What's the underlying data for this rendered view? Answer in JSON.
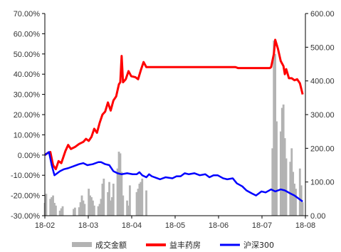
{
  "chart_data": {
    "type": "line",
    "title": "",
    "left_axis": {
      "ticks": [
        "70.00%",
        "60.00%",
        "50.00%",
        "40.00%",
        "30.00%",
        "20.00%",
        "10.00%",
        "0.00%",
        "-10.00%",
        "-20.00%",
        "-30.00%"
      ],
      "ylim": [
        -30,
        70
      ],
      "unit": "%"
    },
    "right_axis": {
      "ticks": [
        "600.00",
        "500.00",
        "400.00",
        "300.00",
        "200.00",
        "100.00",
        "0.00"
      ],
      "ylim": [
        0,
        600
      ]
    },
    "x_axis": {
      "ticks": [
        "18-02",
        "18-03",
        "18-04",
        "18-05",
        "18-06",
        "18-07",
        "18-08"
      ],
      "start": "2018-02-01",
      "end": "2018-08-10"
    },
    "grid": false,
    "legend_position": "bottom",
    "legend": [
      {
        "name": "成交金额",
        "color": "#b3b3b3",
        "kind": "bar"
      },
      {
        "name": "益丰药房",
        "color": "#ff0000",
        "kind": "line"
      },
      {
        "name": "沪深300",
        "color": "#0000ff",
        "kind": "line"
      }
    ],
    "series": [
      {
        "name": "益丰药房",
        "axis": "left",
        "color": "#ff0000",
        "points": [
          [
            "2018-02-01",
            0.0
          ],
          [
            "2018-02-03",
            1.0
          ],
          [
            "2018-02-05",
            1.5
          ],
          [
            "2018-02-07",
            -5.0
          ],
          [
            "2018-02-09",
            -7.0
          ],
          [
            "2018-02-11",
            -3.0
          ],
          [
            "2018-02-13",
            -4.0
          ],
          [
            "2018-02-16",
            2.0
          ],
          [
            "2018-02-18",
            5.0
          ],
          [
            "2018-02-20",
            3.0
          ],
          [
            "2018-02-23",
            4.0
          ],
          [
            "2018-02-26",
            5.5
          ],
          [
            "2018-03-01",
            6.5
          ],
          [
            "2018-03-03",
            8.0
          ],
          [
            "2018-03-05",
            7.0
          ],
          [
            "2018-03-07",
            9.0
          ],
          [
            "2018-03-09",
            13.0
          ],
          [
            "2018-03-11",
            11.0
          ],
          [
            "2018-03-13",
            16.0
          ],
          [
            "2018-03-15",
            20.0
          ],
          [
            "2018-03-17",
            21.5
          ],
          [
            "2018-03-19",
            26.0
          ],
          [
            "2018-03-21",
            22.0
          ],
          [
            "2018-03-23",
            27.0
          ],
          [
            "2018-03-25",
            29.0
          ],
          [
            "2018-03-27",
            35.0
          ],
          [
            "2018-03-28",
            36.0
          ],
          [
            "2018-03-29",
            49.0
          ],
          [
            "2018-03-30",
            36.0
          ],
          [
            "2018-04-01",
            37.5
          ],
          [
            "2018-04-03",
            41.5
          ],
          [
            "2018-04-05",
            39.0
          ],
          [
            "2018-04-08",
            38.5
          ],
          [
            "2018-04-10",
            37.5
          ],
          [
            "2018-04-12",
            42.0
          ],
          [
            "2018-04-14",
            46.0
          ],
          [
            "2018-04-16",
            43.5
          ],
          [
            "2018-04-25",
            43.5
          ],
          [
            "2018-05-15",
            43.5
          ],
          [
            "2018-06-05",
            43.5
          ],
          [
            "2018-06-20",
            43.5
          ],
          [
            "2018-06-22",
            43.0
          ],
          [
            "2018-07-05",
            43.0
          ],
          [
            "2018-07-15",
            43.0
          ],
          [
            "2018-07-16",
            43.5
          ],
          [
            "2018-07-18",
            50.0
          ],
          [
            "2018-07-19",
            57.0
          ],
          [
            "2018-07-21",
            52.5
          ],
          [
            "2018-07-23",
            46.5
          ],
          [
            "2018-07-25",
            44.0
          ],
          [
            "2018-07-26",
            40.0
          ],
          [
            "2018-07-27",
            42.5
          ],
          [
            "2018-07-29",
            38.0
          ],
          [
            "2018-07-31",
            38.0
          ],
          [
            "2018-08-02",
            37.0
          ],
          [
            "2018-08-04",
            37.5
          ],
          [
            "2018-08-06",
            35.5
          ],
          [
            "2018-08-08",
            30.0
          ]
        ]
      },
      {
        "name": "沪深300",
        "axis": "left",
        "color": "#0000ff",
        "points": [
          [
            "2018-02-01",
            0.0
          ],
          [
            "2018-02-03",
            1.0
          ],
          [
            "2018-02-04",
            1.5
          ],
          [
            "2018-02-06",
            -5.0
          ],
          [
            "2018-02-08",
            -10.0
          ],
          [
            "2018-02-10",
            -9.0
          ],
          [
            "2018-02-12",
            -8.0
          ],
          [
            "2018-02-15",
            -7.0
          ],
          [
            "2018-02-18",
            -6.5
          ],
          [
            "2018-02-22",
            -5.5
          ],
          [
            "2018-02-26",
            -4.5
          ],
          [
            "2018-03-01",
            -4.0
          ],
          [
            "2018-03-04",
            -5.0
          ],
          [
            "2018-03-08",
            -4.5
          ],
          [
            "2018-03-12",
            -3.5
          ],
          [
            "2018-03-14",
            -3.5
          ],
          [
            "2018-03-17",
            -4.5
          ],
          [
            "2018-03-20",
            -5.0
          ],
          [
            "2018-03-23",
            -8.0
          ],
          [
            "2018-03-26",
            -9.0
          ],
          [
            "2018-03-29",
            -9.5
          ],
          [
            "2018-04-02",
            -9.0
          ],
          [
            "2018-04-06",
            -9.5
          ],
          [
            "2018-04-09",
            -9.5
          ],
          [
            "2018-04-11",
            -8.5
          ],
          [
            "2018-04-13",
            -10.0
          ],
          [
            "2018-04-16",
            -11.0
          ],
          [
            "2018-04-18",
            -9.5
          ],
          [
            "2018-04-20",
            -10.5
          ],
          [
            "2018-04-24",
            -11.5
          ],
          [
            "2018-04-26",
            -12.0
          ],
          [
            "2018-04-30",
            -11.0
          ],
          [
            "2018-05-05",
            -11.5
          ],
          [
            "2018-05-08",
            -10.5
          ],
          [
            "2018-05-11",
            -10.5
          ],
          [
            "2018-05-14",
            -9.0
          ],
          [
            "2018-05-17",
            -9.5
          ],
          [
            "2018-05-21",
            -9.0
          ],
          [
            "2018-05-25",
            -10.0
          ],
          [
            "2018-05-29",
            -9.5
          ],
          [
            "2018-06-01",
            -11.0
          ],
          [
            "2018-06-04",
            -10.0
          ],
          [
            "2018-06-07",
            -10.0
          ],
          [
            "2018-06-11",
            -11.5
          ],
          [
            "2018-06-14",
            -12.0
          ],
          [
            "2018-06-18",
            -11.5
          ],
          [
            "2018-06-21",
            -14.0
          ],
          [
            "2018-06-25",
            -15.5
          ],
          [
            "2018-06-28",
            -17.5
          ],
          [
            "2018-07-02",
            -19.0
          ],
          [
            "2018-07-05",
            -20.0
          ],
          [
            "2018-07-09",
            -18.0
          ],
          [
            "2018-07-12",
            -18.5
          ],
          [
            "2018-07-16",
            -17.0
          ],
          [
            "2018-07-19",
            -18.0
          ],
          [
            "2018-07-23",
            -17.0
          ],
          [
            "2018-07-26",
            -17.5
          ],
          [
            "2018-07-30",
            -19.0
          ],
          [
            "2018-08-02",
            -20.0
          ],
          [
            "2018-08-06",
            -22.0
          ],
          [
            "2018-08-08",
            -23.0
          ]
        ]
      }
    ],
    "bars": {
      "name": "成交金额",
      "axis": "right",
      "color": "#b3b3b3",
      "points": [
        [
          "2018-02-01",
          38
        ],
        [
          "2018-02-02",
          65
        ],
        [
          "2018-02-05",
          50
        ],
        [
          "2018-02-06",
          55
        ],
        [
          "2018-02-07",
          60
        ],
        [
          "2018-02-08",
          38
        ],
        [
          "2018-02-09",
          30
        ],
        [
          "2018-02-12",
          15
        ],
        [
          "2018-02-13",
          22
        ],
        [
          "2018-02-14",
          28
        ],
        [
          "2018-02-22",
          20
        ],
        [
          "2018-02-23",
          24
        ],
        [
          "2018-02-26",
          25
        ],
        [
          "2018-02-27",
          40
        ],
        [
          "2018-02-28",
          60
        ],
        [
          "2018-03-01",
          45
        ],
        [
          "2018-03-02",
          35
        ],
        [
          "2018-03-05",
          80
        ],
        [
          "2018-03-06",
          60
        ],
        [
          "2018-03-07",
          55
        ],
        [
          "2018-03-08",
          45
        ],
        [
          "2018-03-09",
          30
        ],
        [
          "2018-03-12",
          28
        ],
        [
          "2018-03-13",
          35
        ],
        [
          "2018-03-14",
          50
        ],
        [
          "2018-03-15",
          95
        ],
        [
          "2018-03-16",
          110
        ],
        [
          "2018-03-19",
          70
        ],
        [
          "2018-03-20",
          100
        ],
        [
          "2018-03-21",
          45
        ],
        [
          "2018-03-22",
          55
        ],
        [
          "2018-03-23",
          95
        ],
        [
          "2018-03-26",
          140
        ],
        [
          "2018-03-27",
          190
        ],
        [
          "2018-03-28",
          185
        ],
        [
          "2018-03-29",
          130
        ],
        [
          "2018-03-30",
          60
        ],
        [
          "2018-04-02",
          45
        ],
        [
          "2018-04-03",
          30
        ],
        [
          "2018-04-04",
          90
        ],
        [
          "2018-04-09",
          70
        ],
        [
          "2018-04-10",
          80
        ],
        [
          "2018-04-11",
          95
        ],
        [
          "2018-04-12",
          100
        ],
        [
          "2018-04-13",
          110
        ],
        [
          "2018-04-16",
          75
        ],
        [
          "2018-07-17",
          200
        ],
        [
          "2018-07-18",
          520
        ],
        [
          "2018-07-19",
          480
        ],
        [
          "2018-07-20",
          280
        ],
        [
          "2018-07-23",
          250
        ],
        [
          "2018-07-24",
          320
        ],
        [
          "2018-07-25",
          330
        ],
        [
          "2018-07-26",
          230
        ],
        [
          "2018-07-27",
          170
        ],
        [
          "2018-07-30",
          160
        ],
        [
          "2018-07-31",
          200
        ],
        [
          "2018-08-01",
          130
        ],
        [
          "2018-08-02",
          95
        ],
        [
          "2018-08-03",
          80
        ],
        [
          "2018-08-06",
          140
        ],
        [
          "2018-08-07",
          90
        ],
        [
          "2018-08-08",
          40
        ]
      ]
    }
  }
}
